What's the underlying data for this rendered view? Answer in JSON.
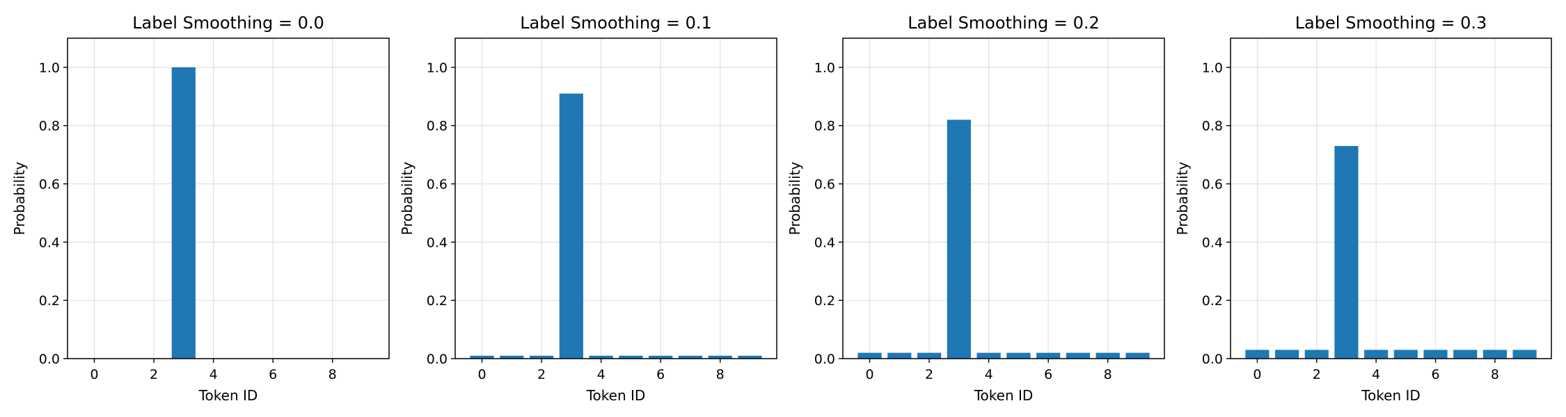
{
  "chart_data": [
    {
      "type": "bar",
      "title": "Label Smoothing = 0.0",
      "xlabel": "Token ID",
      "ylabel": "Probability",
      "x": [
        0,
        1,
        2,
        3,
        4,
        5,
        6,
        7,
        8,
        9
      ],
      "values": [
        0,
        0,
        0,
        1.0,
        0,
        0,
        0,
        0,
        0,
        0
      ],
      "xlim": [
        -0.9,
        9.9
      ],
      "ylim": [
        0,
        1.1
      ],
      "xticks": [
        0,
        2,
        4,
        6,
        8
      ],
      "yticks": [
        0.0,
        0.2,
        0.4,
        0.6,
        0.8,
        1.0
      ],
      "ytick_labels": [
        "0.0",
        "0.2",
        "0.4",
        "0.6",
        "0.8",
        "1.0"
      ],
      "grid": true,
      "color": "#1f77b4"
    },
    {
      "type": "bar",
      "title": "Label Smoothing = 0.1",
      "xlabel": "Token ID",
      "ylabel": "Probability",
      "x": [
        0,
        1,
        2,
        3,
        4,
        5,
        6,
        7,
        8,
        9
      ],
      "values": [
        0.01,
        0.01,
        0.01,
        0.91,
        0.01,
        0.01,
        0.01,
        0.01,
        0.01,
        0.01
      ],
      "xlim": [
        -0.9,
        9.9
      ],
      "ylim": [
        0,
        1.1
      ],
      "xticks": [
        0,
        2,
        4,
        6,
        8
      ],
      "yticks": [
        0.0,
        0.2,
        0.4,
        0.6,
        0.8,
        1.0
      ],
      "ytick_labels": [
        "0.0",
        "0.2",
        "0.4",
        "0.6",
        "0.8",
        "1.0"
      ],
      "grid": true,
      "color": "#1f77b4"
    },
    {
      "type": "bar",
      "title": "Label Smoothing = 0.2",
      "xlabel": "Token ID",
      "ylabel": "Probability",
      "x": [
        0,
        1,
        2,
        3,
        4,
        5,
        6,
        7,
        8,
        9
      ],
      "values": [
        0.02,
        0.02,
        0.02,
        0.82,
        0.02,
        0.02,
        0.02,
        0.02,
        0.02,
        0.02
      ],
      "xlim": [
        -0.9,
        9.9
      ],
      "ylim": [
        0,
        1.1
      ],
      "xticks": [
        0,
        2,
        4,
        6,
        8
      ],
      "yticks": [
        0.0,
        0.2,
        0.4,
        0.6,
        0.8,
        1.0
      ],
      "ytick_labels": [
        "0.0",
        "0.2",
        "0.4",
        "0.6",
        "0.8",
        "1.0"
      ],
      "grid": true,
      "color": "#1f77b4"
    },
    {
      "type": "bar",
      "title": "Label Smoothing = 0.3",
      "xlabel": "Token ID",
      "ylabel": "Probability",
      "x": [
        0,
        1,
        2,
        3,
        4,
        5,
        6,
        7,
        8,
        9
      ],
      "values": [
        0.03,
        0.03,
        0.03,
        0.73,
        0.03,
        0.03,
        0.03,
        0.03,
        0.03,
        0.03
      ],
      "xlim": [
        -0.9,
        9.9
      ],
      "ylim": [
        0,
        1.1
      ],
      "xticks": [
        0,
        2,
        4,
        6,
        8
      ],
      "yticks": [
        0.0,
        0.2,
        0.4,
        0.6,
        0.8,
        1.0
      ],
      "ytick_labels": [
        "0.0",
        "0.2",
        "0.4",
        "0.6",
        "0.8",
        "1.0"
      ],
      "grid": true,
      "color": "#1f77b4"
    }
  ]
}
